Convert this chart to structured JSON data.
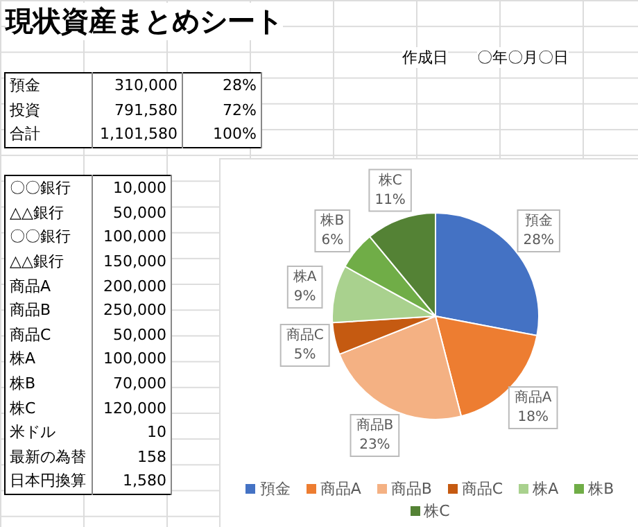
{
  "chart_data": {
    "type": "pie",
    "title": "現状資産まとめシート",
    "categories": [
      "預金",
      "商品A",
      "商品B",
      "商品C",
      "株A",
      "株B",
      "株C"
    ],
    "values": [
      28,
      18,
      23,
      5,
      9,
      6,
      11
    ],
    "colors": [
      "#4472c4",
      "#ed7d31",
      "#f4b183",
      "#c55a11",
      "#a9d18e",
      "#70ad47",
      "#548235"
    ],
    "value_labels": [
      "28%",
      "18%",
      "23%",
      "5%",
      "9%",
      "6%",
      "11%"
    ],
    "legend": "bottom",
    "annotations": [
      "作成日",
      "〇年〇月〇日",
      "預金\t310,000\t28%",
      "投資\t791,580\t72%",
      "合計\t1,101,580\t100%",
      "〇〇銀行\t10,000",
      "△△銀行\t50,000",
      "〇〇銀行\t100,000",
      "△△銀行\t150,000",
      "商品A\t200,000",
      "商品B\t250,000",
      "商品C\t50,000",
      "株A\t100,000",
      "株B\t70,000",
      "株C\t120,000",
      "米ドル\t10",
      "最新の為替\t158",
      "日本円換算\t1,580"
    ]
  }
}
